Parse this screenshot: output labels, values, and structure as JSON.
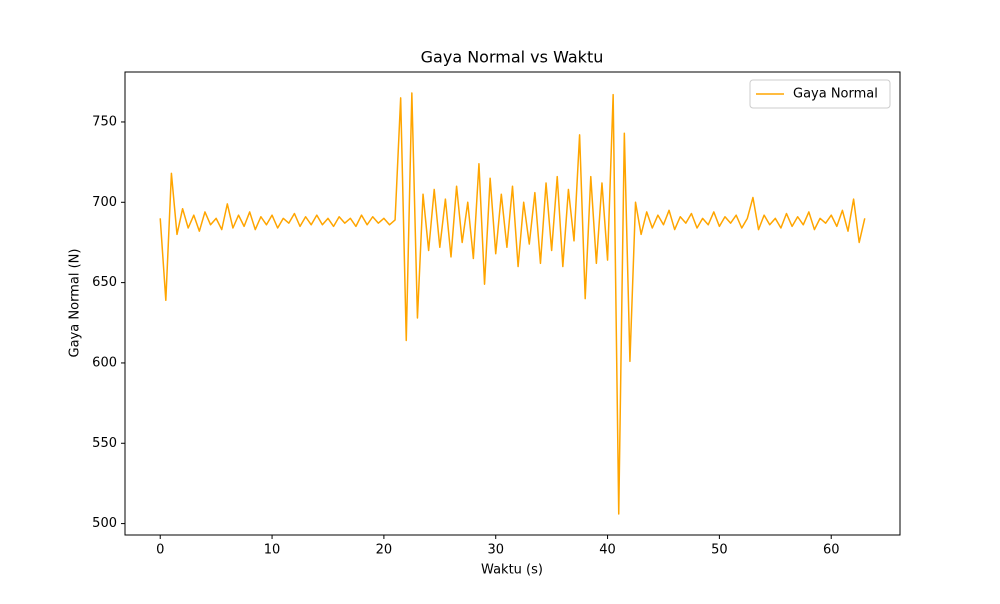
{
  "chart_data": {
    "type": "line",
    "title": "Gaya Normal vs Waktu",
    "xlabel": "Waktu (s)",
    "ylabel": "Gaya Normal (N)",
    "x": [
      0,
      0.5,
      1,
      1.5,
      2,
      2.5,
      3,
      3.5,
      4,
      4.5,
      5,
      5.5,
      6,
      6.5,
      7,
      7.5,
      8,
      8.5,
      9,
      9.5,
      10,
      10.5,
      11,
      11.5,
      12,
      12.5,
      13,
      13.5,
      14,
      14.5,
      15,
      15.5,
      16,
      16.5,
      17,
      17.5,
      18,
      18.5,
      19,
      19.5,
      20,
      20.5,
      21,
      21.5,
      22,
      22.5,
      23,
      23.5,
      24,
      24.5,
      25,
      25.5,
      26,
      26.5,
      27,
      27.5,
      28,
      28.5,
      29,
      29.5,
      30,
      30.5,
      31,
      31.5,
      32,
      32.5,
      33,
      33.5,
      34,
      34.5,
      35,
      35.5,
      36,
      36.5,
      37,
      37.5,
      38,
      38.5,
      39,
      39.5,
      40,
      40.5,
      41,
      41.5,
      42,
      42.5,
      43,
      43.5,
      44,
      44.5,
      45,
      45.5,
      46,
      46.5,
      47,
      47.5,
      48,
      48.5,
      49,
      49.5,
      50,
      50.5,
      51,
      51.5,
      52,
      52.5,
      53,
      53.5,
      54,
      54.5,
      55,
      55.5,
      56,
      56.5,
      57,
      57.5,
      58,
      58.5,
      59,
      59.5,
      60,
      60.5,
      61,
      61.5,
      62,
      62.5,
      63
    ],
    "series": [
      {
        "name": "Gaya Normal",
        "color": "#ffa500",
        "values": [
          690,
          639,
          718,
          680,
          696,
          684,
          692,
          682,
          694,
          686,
          690,
          683,
          699,
          684,
          692,
          685,
          694,
          683,
          691,
          686,
          692,
          684,
          690,
          687,
          693,
          685,
          691,
          686,
          692,
          686,
          690,
          685,
          691,
          687,
          690,
          685,
          692,
          686,
          691,
          687,
          690,
          686,
          689,
          765,
          614,
          768,
          628,
          705,
          670,
          708,
          672,
          702,
          666,
          710,
          675,
          700,
          665,
          724,
          649,
          715,
          668,
          705,
          672,
          710,
          660,
          700,
          674,
          706,
          662,
          712,
          670,
          716,
          660,
          708,
          676,
          742,
          640,
          716,
          662,
          712,
          664,
          767,
          506,
          743,
          601,
          700,
          680,
          694,
          684,
          692,
          686,
          695,
          683,
          691,
          687,
          693,
          684,
          690,
          686,
          694,
          685,
          691,
          687,
          692,
          684,
          690,
          703,
          683,
          692,
          686,
          690,
          684,
          693,
          685,
          691,
          686,
          694,
          683,
          690,
          687,
          692,
          685,
          695,
          682,
          702,
          675,
          690
        ]
      }
    ],
    "xlim": [
      -3.15,
      66.15
    ],
    "ylim": [
      492.9,
      781.1
    ],
    "xticks": [
      0,
      10,
      20,
      30,
      40,
      50,
      60
    ],
    "yticks": [
      500,
      550,
      600,
      650,
      700,
      750
    ],
    "legend": "upper right"
  }
}
